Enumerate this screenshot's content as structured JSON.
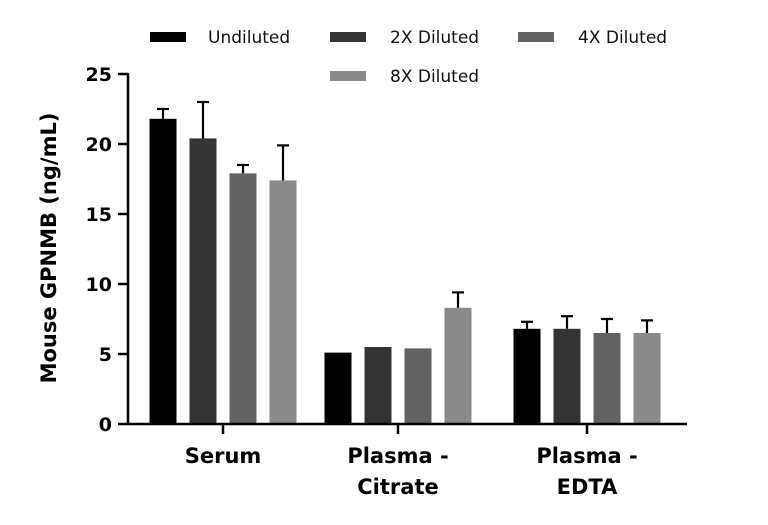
{
  "chart_data": {
    "type": "bar",
    "ylabel": "Mouse GPNMB (ng/mL)",
    "ylim": [
      0,
      25
    ],
    "yticks": [
      "0",
      "5",
      "10",
      "15",
      "20",
      "25"
    ],
    "categories": [
      [
        "Serum"
      ],
      [
        "Plasma -",
        "Citrate"
      ],
      [
        "Plasma -",
        "EDTA"
      ]
    ],
    "legend_placement": "top",
    "series": [
      {
        "name": "Undiluted",
        "color": "#000000",
        "values": [
          21.8,
          5.1,
          6.8
        ],
        "errors": [
          0.7,
          0.0,
          0.5
        ]
      },
      {
        "name": "2X Diluted",
        "color": "#333333",
        "values": [
          20.4,
          5.5,
          6.8
        ],
        "errors": [
          2.6,
          0.0,
          0.9
        ]
      },
      {
        "name": "4X Diluted",
        "color": "#626262",
        "values": [
          17.9,
          5.4,
          6.5
        ],
        "errors": [
          0.6,
          0.0,
          1.0
        ]
      },
      {
        "name": "8X Diluted",
        "color": "#8a8a8a",
        "values": [
          17.4,
          8.3,
          6.5
        ],
        "errors": [
          2.5,
          1.1,
          0.9
        ]
      }
    ]
  }
}
